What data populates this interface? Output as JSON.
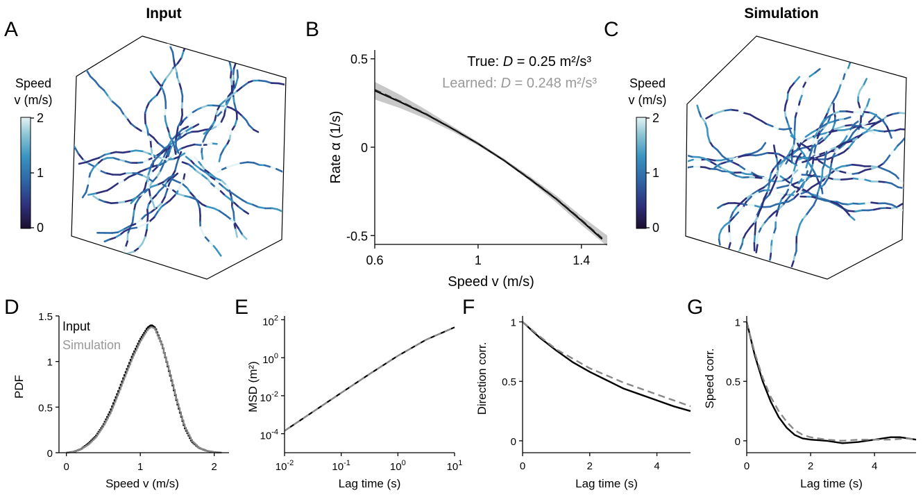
{
  "panels": {
    "A": {
      "letter": "A",
      "title": "Input",
      "colorbar": {
        "title_line1": "Speed",
        "title_line2": "v (m/s)",
        "ticks": [
          "2",
          "1",
          "0"
        ]
      }
    },
    "B": {
      "letter": "B"
    },
    "C": {
      "letter": "C",
      "title": "Simulation",
      "colorbar": {
        "title_line1": "Speed",
        "title_line2": "v (m/s)",
        "ticks": [
          "2",
          "1",
          "0"
        ]
      }
    },
    "D": {
      "letter": "D"
    },
    "E": {
      "letter": "E"
    },
    "F": {
      "letter": "F"
    },
    "G": {
      "letter": "G"
    }
  },
  "colors": {
    "true": "#000000",
    "learned": "#888888",
    "band": "#c8c8c8",
    "cmap": [
      "#1b0f2e",
      "#2e2f7a",
      "#2f6aa8",
      "#3a94c0",
      "#8fc7d6",
      "#e4f3f4"
    ]
  },
  "chart_data": [
    {
      "panel": "B",
      "type": "line",
      "title": "",
      "xlabel": "Speed v (m/s)",
      "ylabel": "Rate α (1/s)",
      "xlim": [
        0.6,
        1.5
      ],
      "ylim": [
        -0.55,
        0.55
      ],
      "xticks": [
        0.6,
        1,
        1.4
      ],
      "xtick_labels": [
        "0.6",
        "1",
        "1.4"
      ],
      "yticks": [
        0.5,
        0,
        -0.5
      ],
      "ytick_labels": [
        "0.5",
        "0",
        "-0.5"
      ],
      "legend": {
        "true_text": "True: ",
        "true_italic": "D",
        "true_value": " = 0.25 m²/s³",
        "learned_text": "Learned: ",
        "learned_italic": "D",
        "learned_value": " = 0.248 m²/s³",
        "placement": "top-right"
      },
      "series": [
        {
          "name": "True",
          "style": "solid",
          "x": [
            0.6,
            0.7,
            0.8,
            0.9,
            1.0,
            1.1,
            1.2,
            1.3,
            1.4,
            1.48
          ],
          "y": [
            0.32,
            0.255,
            0.185,
            0.105,
            0.02,
            -0.075,
            -0.18,
            -0.29,
            -0.415,
            -0.52
          ]
        },
        {
          "name": "Learned",
          "style": "dashed",
          "x": [
            0.6,
            0.7,
            0.8,
            0.9,
            1.0,
            1.1,
            1.2,
            1.3,
            1.4,
            1.48
          ],
          "y": [
            0.325,
            0.258,
            0.187,
            0.106,
            0.02,
            -0.074,
            -0.178,
            -0.288,
            -0.412,
            -0.515
          ]
        }
      ],
      "band": {
        "x": [
          0.6,
          0.7,
          0.8,
          0.9,
          1.0,
          1.1,
          1.2,
          1.3,
          1.4,
          1.5
        ],
        "lower": [
          0.27,
          0.22,
          0.16,
          0.09,
          0.01,
          -0.08,
          -0.19,
          -0.31,
          -0.44,
          -0.56
        ],
        "upper": [
          0.37,
          0.295,
          0.21,
          0.12,
          0.03,
          -0.065,
          -0.165,
          -0.27,
          -0.39,
          -0.5
        ]
      }
    },
    {
      "panel": "D",
      "type": "line",
      "xlabel": "Speed v (m/s)",
      "ylabel": "PDF",
      "xlim": [
        -0.1,
        2.2
      ],
      "ylim": [
        0,
        1.5
      ],
      "xticks": [
        0,
        1,
        2
      ],
      "xtick_labels": [
        "0",
        "1",
        "2"
      ],
      "yticks": [
        0,
        0.5,
        1,
        1.5
      ],
      "ytick_labels": [
        "0",
        "0.5",
        "1",
        "1.5"
      ],
      "legend": {
        "input": "Input",
        "simulation": "Simulation",
        "placement": "top-left"
      },
      "series": [
        {
          "name": "Input",
          "x": [
            0,
            0.1,
            0.2,
            0.3,
            0.4,
            0.5,
            0.6,
            0.7,
            0.8,
            0.9,
            1.0,
            1.1,
            1.15,
            1.2,
            1.3,
            1.4,
            1.5,
            1.6,
            1.7,
            1.8,
            1.9,
            2.0,
            2.1
          ],
          "y": [
            0,
            0.01,
            0.04,
            0.1,
            0.18,
            0.3,
            0.46,
            0.66,
            0.87,
            1.07,
            1.24,
            1.37,
            1.4,
            1.37,
            1.17,
            0.87,
            0.55,
            0.28,
            0.12,
            0.05,
            0.02,
            0.005,
            0
          ]
        },
        {
          "name": "Simulation",
          "x": [
            0,
            0.1,
            0.2,
            0.3,
            0.4,
            0.5,
            0.6,
            0.7,
            0.8,
            0.9,
            1.0,
            1.1,
            1.15,
            1.2,
            1.3,
            1.4,
            1.5,
            1.6,
            1.7,
            1.8,
            1.9,
            2.0,
            2.1
          ],
          "y": [
            0,
            0.01,
            0.04,
            0.09,
            0.17,
            0.29,
            0.44,
            0.64,
            0.85,
            1.05,
            1.22,
            1.35,
            1.38,
            1.36,
            1.17,
            0.88,
            0.56,
            0.29,
            0.13,
            0.05,
            0.02,
            0.005,
            0
          ]
        }
      ]
    },
    {
      "panel": "E",
      "type": "line",
      "xlabel": "Lag time (s)",
      "ylabel": "MSD (m²)",
      "xscale": "log",
      "yscale": "log",
      "xlim_log10": [
        -2,
        1
      ],
      "ylim_log10": [
        -5,
        2.2
      ],
      "xticks_log10": [
        -2,
        -1,
        0,
        1
      ],
      "xtick_exponents": [
        "-2",
        "-1",
        "0",
        "1"
      ],
      "xtick_base": "10",
      "yticks_log10": [
        -4,
        -2,
        0,
        2
      ],
      "ytick_exponents": [
        "-4",
        "-2",
        "0",
        "2"
      ],
      "ytick_base": "10",
      "series": [
        {
          "name": "Input",
          "style": "solid",
          "log10x": [
            -2,
            -1.5,
            -1,
            -0.5,
            0,
            0.5,
            1
          ],
          "log10y": [
            -3.85,
            -2.85,
            -1.85,
            -0.86,
            0.1,
            0.95,
            1.6
          ]
        },
        {
          "name": "Simulation",
          "style": "dashed",
          "log10x": [
            -2,
            -1.5,
            -1,
            -0.5,
            0,
            0.5,
            1
          ],
          "log10y": [
            -3.85,
            -2.85,
            -1.85,
            -0.86,
            0.1,
            0.95,
            1.6
          ]
        }
      ]
    },
    {
      "panel": "F",
      "type": "line",
      "xlabel": "Lag time (s)",
      "ylabel": "Direction corr.",
      "xlim": [
        0,
        5
      ],
      "ylim": [
        -0.1,
        1.05
      ],
      "xticks": [
        0,
        2,
        4
      ],
      "xtick_labels": [
        "0",
        "2",
        "4"
      ],
      "yticks": [
        0,
        0.5,
        1
      ],
      "ytick_labels": [
        "0",
        "0.5",
        "1"
      ],
      "series": [
        {
          "name": "Input",
          "style": "solid",
          "x": [
            0,
            0.5,
            1,
            1.5,
            2,
            2.5,
            3,
            3.5,
            4,
            4.5,
            5
          ],
          "y": [
            1,
            0.87,
            0.76,
            0.66,
            0.58,
            0.51,
            0.44,
            0.39,
            0.34,
            0.29,
            0.25
          ]
        },
        {
          "name": "Simulation",
          "style": "dashed",
          "x": [
            0,
            0.5,
            1,
            1.5,
            2,
            2.5,
            3,
            3.5,
            4,
            4.5,
            5
          ],
          "y": [
            1,
            0.88,
            0.77,
            0.69,
            0.61,
            0.55,
            0.49,
            0.44,
            0.39,
            0.34,
            0.29
          ]
        }
      ]
    },
    {
      "panel": "G",
      "type": "line",
      "xlabel": "Lag time (s)",
      "ylabel": "Speed corr.",
      "xlim": [
        0,
        5.3
      ],
      "ylim": [
        -0.1,
        1.05
      ],
      "xticks": [
        0,
        2,
        4
      ],
      "xtick_labels": [
        "0",
        "2",
        "4"
      ],
      "yticks": [
        0,
        0.5,
        1
      ],
      "ytick_labels": [
        "0",
        "0.5",
        "1"
      ],
      "series": [
        {
          "name": "Input",
          "style": "solid",
          "x": [
            0,
            0.25,
            0.5,
            0.75,
            1,
            1.25,
            1.5,
            1.75,
            2,
            2.5,
            3,
            3.5,
            4,
            4.5,
            4.8,
            5.3
          ],
          "y": [
            1,
            0.72,
            0.5,
            0.33,
            0.2,
            0.11,
            0.05,
            0.02,
            0.01,
            0,
            -0.02,
            -0.01,
            0.01,
            0.03,
            0.03,
            0.01
          ]
        },
        {
          "name": "Simulation",
          "style": "dashed",
          "x": [
            0,
            0.25,
            0.5,
            0.75,
            1,
            1.25,
            1.5,
            1.75,
            2,
            2.5,
            3,
            3.5,
            4,
            4.5,
            5,
            5.3
          ],
          "y": [
            1,
            0.74,
            0.53,
            0.37,
            0.25,
            0.16,
            0.09,
            0.05,
            0.03,
            0.01,
            0,
            0.01,
            0.01,
            0.01,
            0.02,
            0.01
          ]
        }
      ]
    }
  ]
}
